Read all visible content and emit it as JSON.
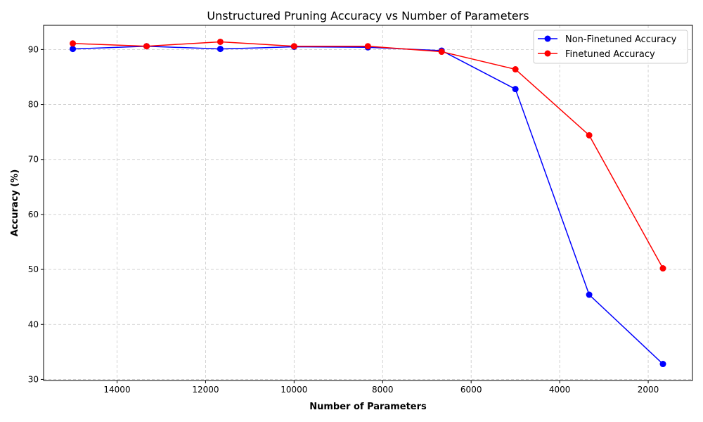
{
  "chart_data": {
    "type": "line",
    "title": "Unstructured Pruning Accuracy vs Number of Parameters",
    "xlabel": "Number of Parameters",
    "ylabel": "Accuracy (%)",
    "x_inverted": true,
    "xlim": [
      15660,
      1000
    ],
    "ylim": [
      29.8,
      94.4
    ],
    "xticks": [
      14000,
      12000,
      10000,
      8000,
      6000,
      4000,
      2000
    ],
    "yticks": [
      30,
      40,
      50,
      60,
      70,
      80,
      90
    ],
    "grid": true,
    "legend_position": "top-right",
    "x": [
      15000,
      13333,
      11667,
      10000,
      8333,
      6667,
      5000,
      3333,
      1667
    ],
    "series": [
      {
        "name": "Non-Finetuned Accuracy",
        "color": "#0000ff",
        "values": [
          90.1,
          90.6,
          90.1,
          90.5,
          90.4,
          89.8,
          82.8,
          45.4,
          32.8
        ]
      },
      {
        "name": "Finetuned Accuracy",
        "color": "#ff0000",
        "values": [
          91.1,
          90.6,
          91.4,
          90.6,
          90.6,
          89.6,
          86.4,
          74.4,
          50.2
        ]
      }
    ]
  }
}
